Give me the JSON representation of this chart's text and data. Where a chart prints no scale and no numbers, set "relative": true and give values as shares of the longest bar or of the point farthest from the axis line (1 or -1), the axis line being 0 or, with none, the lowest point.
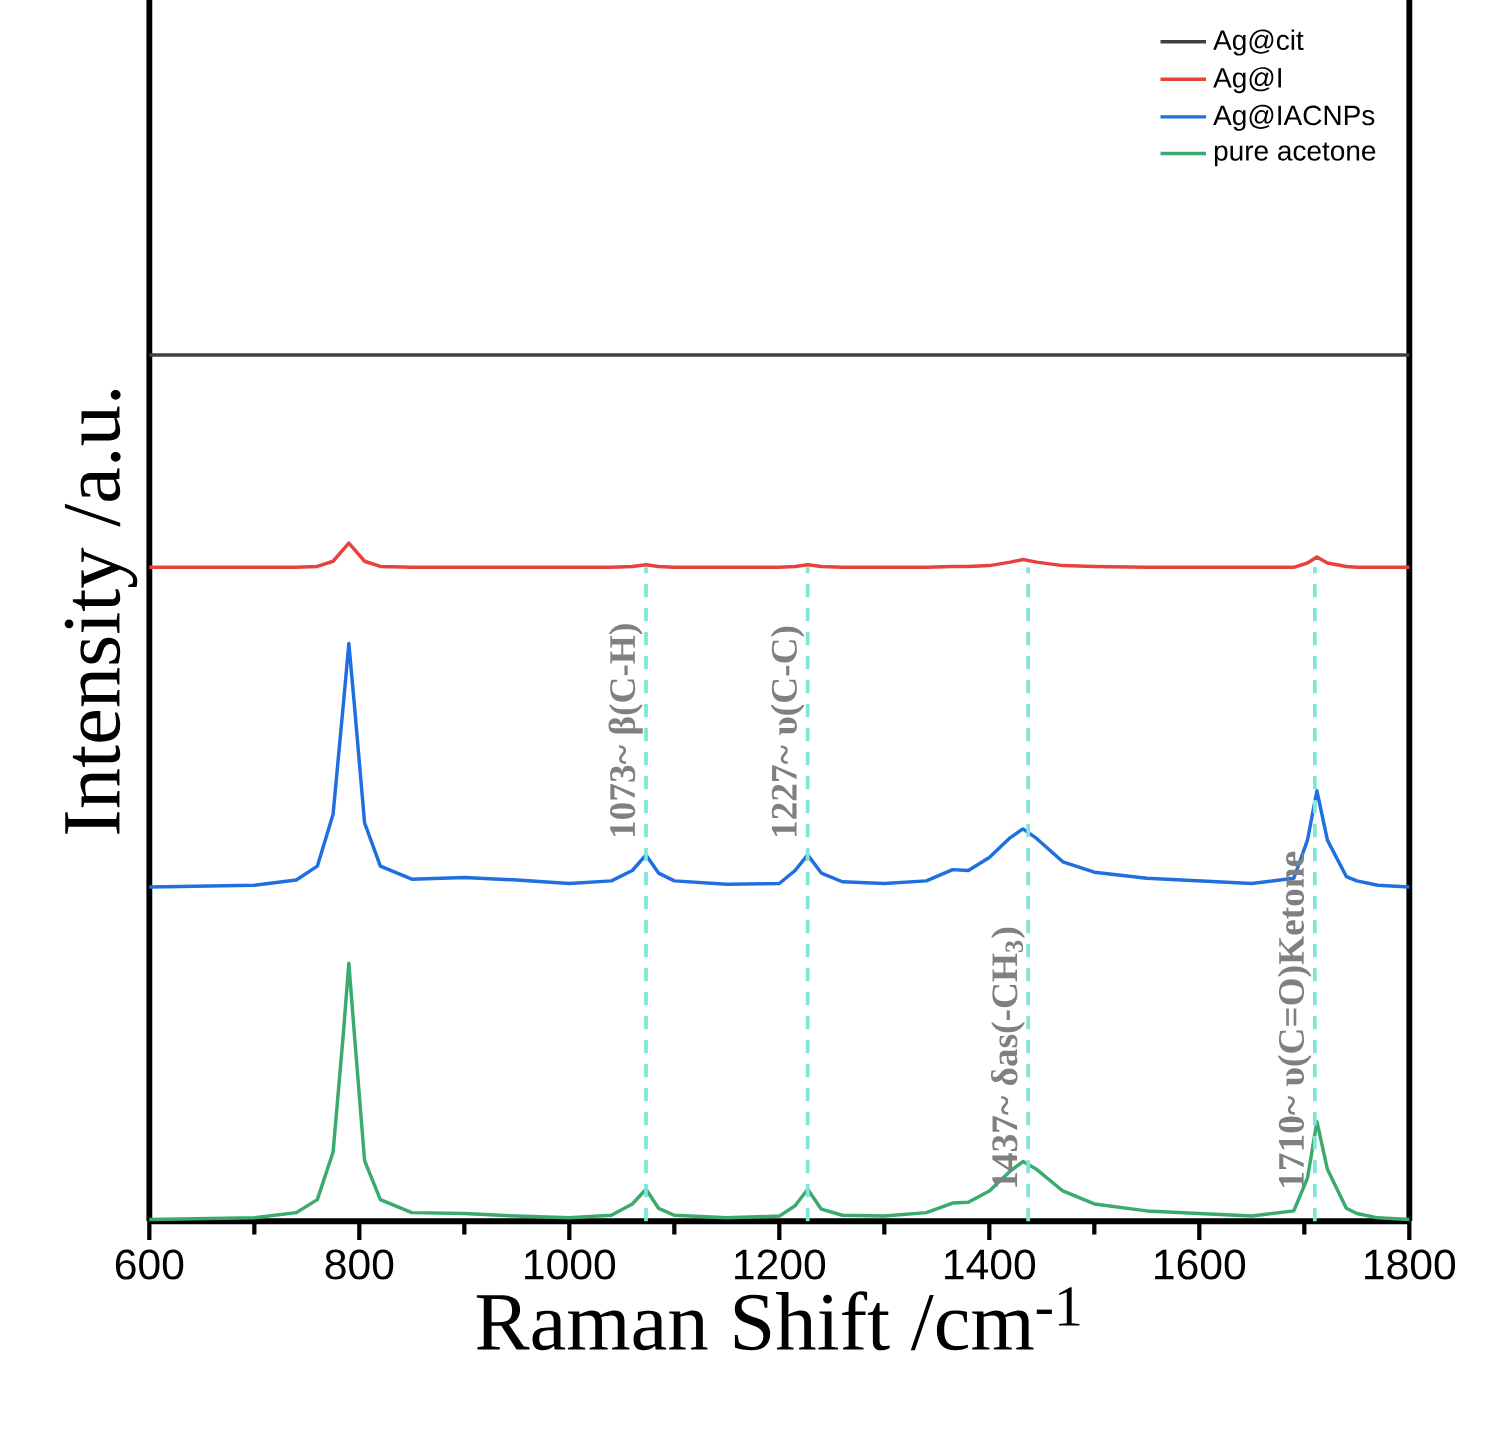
{
  "chart_data": {
    "type": "line",
    "relative": true,
    "xlabel": "Raman Shift /cm$^{-1}$",
    "ylabel": "Intensity /a.u.",
    "xlim": [
      600,
      1800
    ],
    "xticks": [
      600,
      800,
      1000,
      1200,
      1400,
      1600,
      1800
    ],
    "legend": "top right",
    "marker": "none",
    "line_style": "solid",
    "grid": false,
    "x": [
      600,
      700,
      740,
      760,
      775,
      785,
      790,
      795,
      805,
      820,
      850,
      900,
      950,
      1000,
      1040,
      1060,
      1073,
      1085,
      1100,
      1150,
      1200,
      1215,
      1227,
      1240,
      1260,
      1300,
      1340,
      1365,
      1380,
      1400,
      1420,
      1432,
      1445,
      1470,
      1500,
      1550,
      1600,
      1650,
      1690,
      1703,
      1712,
      1722,
      1740,
      1750,
      1770,
      1800
    ],
    "series": [
      {
        "name": "Ag@cit",
        "color": "#404040",
        "x": [
          600,
          1800
        ],
        "values": [
          1.0,
          1.0
        ]
      },
      {
        "name": "Ag@I",
        "color": "#e8423f",
        "values": [
          0.755,
          0.755,
          0.755,
          0.756,
          0.762,
          0.776,
          0.783,
          0.776,
          0.762,
          0.756,
          0.755,
          0.755,
          0.755,
          0.755,
          0.755,
          0.756,
          0.758,
          0.756,
          0.755,
          0.755,
          0.755,
          0.756,
          0.758,
          0.756,
          0.755,
          0.755,
          0.755,
          0.756,
          0.756,
          0.757,
          0.761,
          0.764,
          0.761,
          0.757,
          0.756,
          0.755,
          0.755,
          0.755,
          0.755,
          0.76,
          0.767,
          0.76,
          0.756,
          0.755,
          0.755,
          0.755
        ]
      },
      {
        "name": "Ag@IACNPs",
        "color": "#1f6fe0",
        "values": [
          0.386,
          0.388,
          0.394,
          0.41,
          0.47,
          0.6,
          0.667,
          0.6,
          0.46,
          0.41,
          0.395,
          0.397,
          0.394,
          0.39,
          0.393,
          0.405,
          0.423,
          0.402,
          0.393,
          0.389,
          0.39,
          0.405,
          0.423,
          0.402,
          0.392,
          0.39,
          0.393,
          0.406,
          0.405,
          0.42,
          0.443,
          0.453,
          0.442,
          0.415,
          0.403,
          0.396,
          0.393,
          0.39,
          0.396,
          0.44,
          0.497,
          0.44,
          0.398,
          0.393,
          0.388,
          0.386
        ]
      },
      {
        "name": "pure acetone",
        "color": "#3aaa6e",
        "values": [
          0.002,
          0.004,
          0.01,
          0.025,
          0.08,
          0.22,
          0.298,
          0.22,
          0.07,
          0.025,
          0.01,
          0.009,
          0.006,
          0.004,
          0.007,
          0.02,
          0.037,
          0.015,
          0.007,
          0.004,
          0.006,
          0.018,
          0.037,
          0.014,
          0.007,
          0.006,
          0.01,
          0.021,
          0.022,
          0.035,
          0.058,
          0.069,
          0.06,
          0.035,
          0.02,
          0.012,
          0.009,
          0.006,
          0.012,
          0.05,
          0.115,
          0.06,
          0.015,
          0.009,
          0.004,
          0.002
        ]
      }
    ],
    "ref_lines": [
      {
        "axis": "x",
        "value": 1073,
        "label": "1073~ β(C-H)",
        "color": "#7fe6d8",
        "line_style": "dashed"
      },
      {
        "axis": "x",
        "value": 1227,
        "label": "1227~ υ(C-C)",
        "color": "#7fe6d8",
        "line_style": "dashed"
      },
      {
        "axis": "x",
        "value": 1437,
        "label": "1437~ δas(-CH$_{3}$)",
        "color": "#7fe6d8",
        "line_style": "dashed"
      },
      {
        "axis": "x",
        "value": 1710,
        "label": "1710~ υ(C=O)Ketone",
        "color": "#7fe6d8",
        "line_style": "dashed"
      }
    ]
  }
}
